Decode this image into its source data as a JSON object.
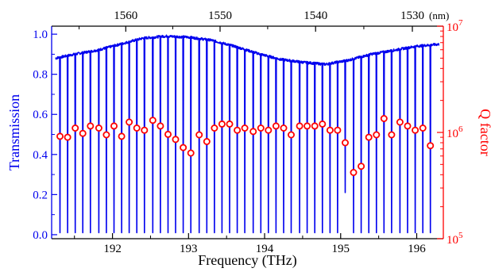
{
  "chart_data": {
    "type": "line",
    "title": "",
    "xlabel": "Frequency (THz)",
    "ylabel_left": "Transmission",
    "ylabel_right": "Q factor",
    "top_axis_unit": "(nm)",
    "x_range": [
      191.2,
      196.35
    ],
    "x_ticks": [
      "192",
      "193",
      "194",
      "195",
      "196"
    ],
    "top_ticks": [
      "1560",
      "1550",
      "1540",
      "1530"
    ],
    "y_left_range": [
      -0.02,
      1.04
    ],
    "y_left_ticks": [
      "0.0",
      "0.2",
      "0.4",
      "0.6",
      "0.8",
      "1.0"
    ],
    "y_right_scale": "log",
    "y_right_range": [
      100000,
      10000000
    ],
    "y_right_ticks": [
      "10^5",
      "10^6",
      "10^7"
    ],
    "grid": false,
    "series": [
      {
        "name": "Transmission",
        "axis": "left",
        "color": "#0000ee",
        "baseline": {
          "x": [
            191.25,
            191.5,
            191.8,
            192.1,
            192.4,
            192.7,
            193.0,
            193.3,
            193.6,
            193.9,
            194.2,
            194.5,
            194.8,
            195.1,
            195.4,
            195.7,
            196.0,
            196.3
          ],
          "y": [
            0.88,
            0.9,
            0.92,
            0.95,
            0.98,
            0.99,
            0.985,
            0.97,
            0.94,
            0.905,
            0.875,
            0.86,
            0.85,
            0.87,
            0.9,
            0.92,
            0.94,
            0.95
          ]
        },
        "resonance_dips": {
          "x": [
            191.31,
            191.41,
            191.51,
            191.61,
            191.71,
            191.82,
            191.92,
            192.02,
            192.12,
            192.22,
            192.32,
            192.42,
            192.53,
            192.63,
            192.73,
            192.83,
            192.93,
            193.03,
            193.14,
            193.24,
            193.34,
            193.44,
            193.54,
            193.64,
            193.74,
            193.85,
            193.95,
            194.05,
            194.15,
            194.25,
            194.35,
            194.46,
            194.56,
            194.66,
            194.76,
            194.86,
            194.96,
            195.06,
            195.17,
            195.27,
            195.37,
            195.47,
            195.57,
            195.67,
            195.78,
            195.88,
            195.98,
            196.08,
            196.18
          ],
          "min_y": [
            0.01,
            0.01,
            0.01,
            0.01,
            0.01,
            0.01,
            0.01,
            0.01,
            0.01,
            0.01,
            0.01,
            0.01,
            0.01,
            0.01,
            0.01,
            0.01,
            0.01,
            0.01,
            0.01,
            0.01,
            0.01,
            0.01,
            0.01,
            0.01,
            0.01,
            0.01,
            0.01,
            0.01,
            0.01,
            0.01,
            0.01,
            0.01,
            0.01,
            0.01,
            0.01,
            0.01,
            0.01,
            0.21,
            0.01,
            0.01,
            0.01,
            0.01,
            0.01,
            0.01,
            0.01,
            0.01,
            0.01,
            0.01,
            0.01
          ]
        }
      },
      {
        "name": "Q factor",
        "axis": "right",
        "color": "#ff0000",
        "marker": "open-circle",
        "x": [
          191.31,
          191.41,
          191.51,
          191.61,
          191.71,
          191.82,
          191.92,
          192.02,
          192.12,
          192.22,
          192.32,
          192.42,
          192.53,
          192.63,
          192.73,
          192.83,
          192.93,
          193.03,
          193.14,
          193.24,
          193.34,
          193.44,
          193.54,
          193.64,
          193.74,
          193.85,
          193.95,
          194.05,
          194.15,
          194.25,
          194.35,
          194.46,
          194.56,
          194.66,
          194.76,
          194.86,
          194.96,
          195.06,
          195.17,
          195.27,
          195.37,
          195.47,
          195.57,
          195.67,
          195.78,
          195.88,
          195.98,
          196.08,
          196.18
        ],
        "y": [
          920000,
          900000,
          1100000,
          980000,
          1150000,
          1100000,
          950000,
          1150000,
          920000,
          1250000,
          1100000,
          1050000,
          1300000,
          1150000,
          960000,
          860000,
          720000,
          640000,
          950000,
          820000,
          1100000,
          1200000,
          1200000,
          1050000,
          1100000,
          1020000,
          1100000,
          1050000,
          1150000,
          1100000,
          950000,
          1150000,
          1150000,
          1150000,
          1200000,
          1050000,
          1050000,
          800000,
          420000,
          480000,
          900000,
          950000,
          1350000,
          950000,
          1250000,
          1150000,
          1050000,
          1100000,
          750000
        ]
      }
    ]
  }
}
